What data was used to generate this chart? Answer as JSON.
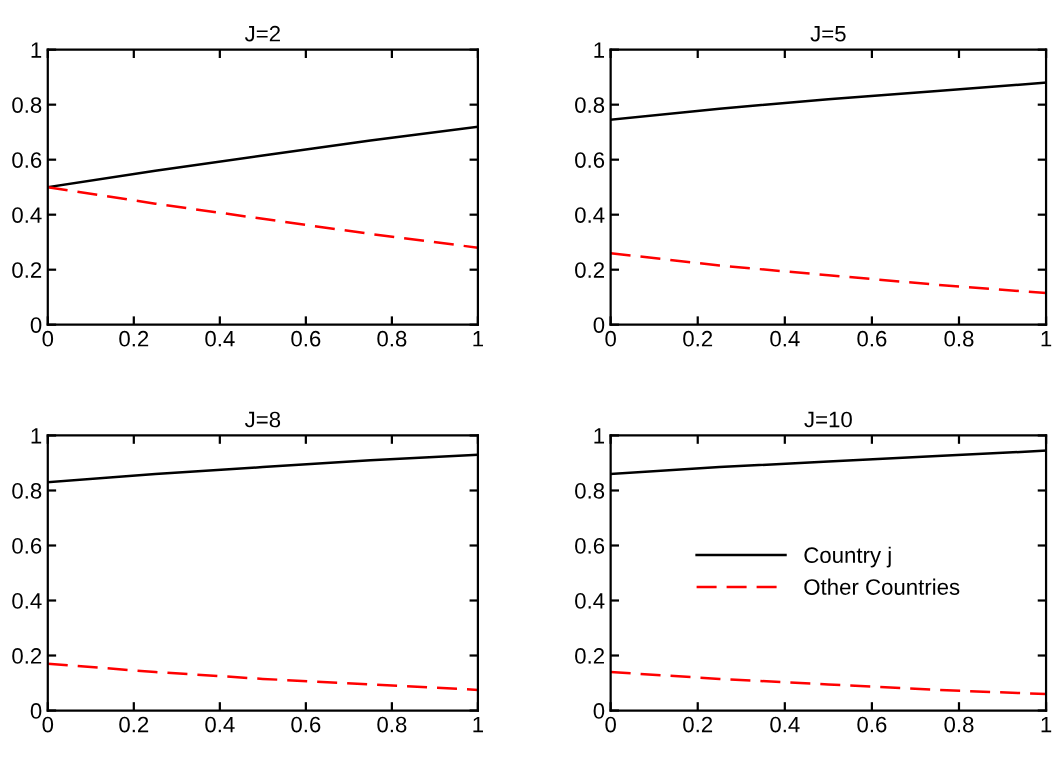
{
  "chart_data": [
    {
      "type": "line",
      "title": "J=2",
      "x": [
        0,
        0.25,
        0.5,
        0.75,
        1
      ],
      "xlim": [
        0,
        1
      ],
      "ylim": [
        0,
        1
      ],
      "xticks": [
        0,
        0.2,
        0.4,
        0.6,
        0.8,
        1
      ],
      "yticks": [
        0,
        0.2,
        0.4,
        0.6,
        0.8,
        1
      ],
      "grid": false,
      "legend": false,
      "series": [
        {
          "color": "#000000",
          "line_style": "solid",
          "values": [
            0.5,
            0.56,
            0.615,
            0.67,
            0.72
          ]
        },
        {
          "color": "#ff0000",
          "line_style": "dashed",
          "values": [
            0.5,
            0.44,
            0.385,
            0.33,
            0.28
          ]
        }
      ]
    },
    {
      "type": "line",
      "title": "J=5",
      "x": [
        0,
        0.25,
        0.5,
        0.75,
        1
      ],
      "xlim": [
        0,
        1
      ],
      "ylim": [
        0,
        1
      ],
      "xticks": [
        0,
        0.2,
        0.4,
        0.6,
        0.8,
        1
      ],
      "yticks": [
        0,
        0.2,
        0.4,
        0.6,
        0.8,
        1
      ],
      "grid": false,
      "legend": false,
      "series": [
        {
          "color": "#000000",
          "line_style": "solid",
          "values": [
            0.745,
            0.785,
            0.82,
            0.85,
            0.88
          ]
        },
        {
          "color": "#ff0000",
          "line_style": "dashed",
          "values": [
            0.26,
            0.215,
            0.18,
            0.145,
            0.115
          ]
        }
      ]
    },
    {
      "type": "line",
      "title": "J=8",
      "x": [
        0,
        0.25,
        0.5,
        0.75,
        1
      ],
      "xlim": [
        0,
        1
      ],
      "ylim": [
        0,
        1
      ],
      "xticks": [
        0,
        0.2,
        0.4,
        0.6,
        0.8,
        1
      ],
      "yticks": [
        0,
        0.2,
        0.4,
        0.6,
        0.8,
        1
      ],
      "grid": false,
      "legend": false,
      "series": [
        {
          "color": "#000000",
          "line_style": "solid",
          "values": [
            0.83,
            0.86,
            0.885,
            0.91,
            0.93
          ]
        },
        {
          "color": "#ff0000",
          "line_style": "dashed",
          "values": [
            0.17,
            0.14,
            0.115,
            0.095,
            0.075
          ]
        }
      ]
    },
    {
      "type": "line",
      "title": "J=10",
      "x": [
        0,
        0.25,
        0.5,
        0.75,
        1
      ],
      "xlim": [
        0,
        1
      ],
      "ylim": [
        0,
        1
      ],
      "xticks": [
        0,
        0.2,
        0.4,
        0.6,
        0.8,
        1
      ],
      "yticks": [
        0,
        0.2,
        0.4,
        0.6,
        0.8,
        1
      ],
      "grid": false,
      "legend": "center",
      "series": [
        {
          "name": "Country j",
          "color": "#000000",
          "line_style": "solid",
          "values": [
            0.86,
            0.885,
            0.905,
            0.925,
            0.945
          ]
        },
        {
          "name": "Other Countries",
          "color": "#ff0000",
          "line_style": "dashed",
          "values": [
            0.14,
            0.115,
            0.095,
            0.075,
            0.06
          ]
        }
      ]
    }
  ]
}
